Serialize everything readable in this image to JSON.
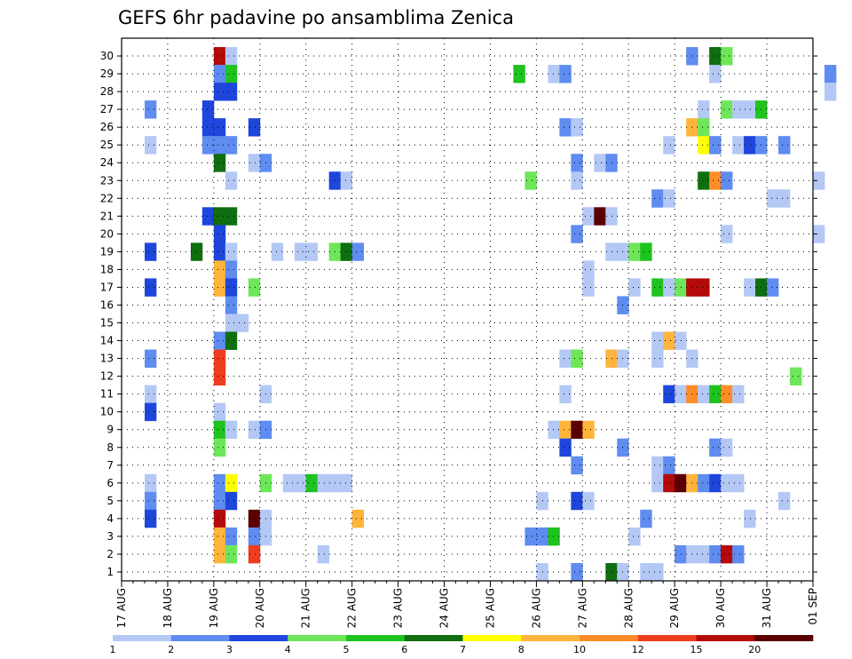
{
  "chart_data": {
    "type": "heatmap",
    "title": "GEFS 6hr padavine po ansamblima Zenica",
    "xlabel": "",
    "ylabel": "",
    "x_ticks": [
      "17 AUG",
      "18 AUG",
      "19 AUG",
      "20 AUG",
      "21 AUG",
      "22 AUG",
      "23 AUG",
      "24 AUG",
      "25 AUG",
      "26 AUG",
      "27 AUG",
      "28 AUG",
      "29 AUG",
      "30 AUG",
      "31 AUG",
      "01 SEP"
    ],
    "y_ticks": [
      1,
      2,
      3,
      4,
      5,
      6,
      7,
      8,
      9,
      10,
      11,
      12,
      13,
      14,
      15,
      16,
      17,
      18,
      19,
      20,
      21,
      22,
      23,
      24,
      25,
      26,
      27,
      28,
      29,
      30
    ],
    "x_unit": "6-hour steps since 17 AUG 00Z",
    "ylim": [
      0,
      30
    ],
    "grid": true,
    "colorbar": {
      "labels": [
        "1",
        "2",
        "3",
        "4",
        "5",
        "6",
        "7",
        "8",
        "10",
        "12",
        "15",
        "20"
      ],
      "colors": [
        "#b4c8f5",
        "#5f8cf0",
        "#1e46dc",
        "#6ee65a",
        "#1ec31e",
        "#0f6e0f",
        "#ffff00",
        "#ffb43c",
        "#ff8c28",
        "#f03c1e",
        "#b40a0a",
        "#5a0000"
      ]
    },
    "cells": [
      [
        8,
        30,
        10
      ],
      [
        9,
        30,
        0
      ],
      [
        49,
        30,
        1
      ],
      [
        51,
        30,
        5
      ],
      [
        52,
        30,
        3
      ],
      [
        8,
        29,
        1
      ],
      [
        9,
        29,
        4
      ],
      [
        34,
        29,
        4
      ],
      [
        37,
        29,
        0
      ],
      [
        38,
        29,
        1
      ],
      [
        51,
        29,
        0
      ],
      [
        61,
        29,
        1
      ],
      [
        8,
        28,
        2
      ],
      [
        9,
        28,
        2
      ],
      [
        61,
        28,
        0
      ],
      [
        2,
        27,
        1
      ],
      [
        7,
        27,
        2
      ],
      [
        50,
        27,
        0
      ],
      [
        52,
        27,
        3
      ],
      [
        53,
        27,
        0
      ],
      [
        54,
        27,
        0
      ],
      [
        55,
        27,
        4
      ],
      [
        7,
        26,
        2
      ],
      [
        8,
        26,
        2
      ],
      [
        11,
        26,
        2
      ],
      [
        38,
        26,
        1
      ],
      [
        39,
        26,
        0
      ],
      [
        49,
        26,
        7
      ],
      [
        50,
        26,
        3
      ],
      [
        2,
        25,
        0
      ],
      [
        7,
        25,
        1
      ],
      [
        8,
        25,
        1
      ],
      [
        9,
        25,
        1
      ],
      [
        47,
        25,
        0
      ],
      [
        50,
        25,
        6
      ],
      [
        51,
        25,
        1
      ],
      [
        53,
        25,
        0
      ],
      [
        54,
        25,
        2
      ],
      [
        55,
        25,
        1
      ],
      [
        57,
        25,
        1
      ],
      [
        8,
        24,
        5
      ],
      [
        11,
        24,
        0
      ],
      [
        12,
        24,
        1
      ],
      [
        39,
        24,
        1
      ],
      [
        41,
        24,
        0
      ],
      [
        42,
        24,
        1
      ],
      [
        9,
        23,
        0
      ],
      [
        18,
        23,
        2
      ],
      [
        19,
        23,
        0
      ],
      [
        35,
        23,
        3
      ],
      [
        39,
        23,
        0
      ],
      [
        50,
        23,
        5
      ],
      [
        51,
        23,
        8
      ],
      [
        52,
        23,
        1
      ],
      [
        60,
        23,
        0
      ],
      [
        46,
        22,
        1
      ],
      [
        47,
        22,
        0
      ],
      [
        56,
        22,
        0
      ],
      [
        57,
        22,
        0
      ],
      [
        7,
        21,
        2
      ],
      [
        8,
        21,
        5
      ],
      [
        9,
        21,
        5
      ],
      [
        40,
        21,
        0
      ],
      [
        41,
        21,
        11
      ],
      [
        42,
        21,
        0
      ],
      [
        8,
        20,
        2
      ],
      [
        39,
        20,
        1
      ],
      [
        52,
        20,
        0
      ],
      [
        60,
        20,
        0
      ],
      [
        2,
        19,
        2
      ],
      [
        6,
        19,
        5
      ],
      [
        8,
        19,
        2
      ],
      [
        9,
        19,
        0
      ],
      [
        13,
        19,
        0
      ],
      [
        15,
        19,
        0
      ],
      [
        16,
        19,
        0
      ],
      [
        18,
        19,
        3
      ],
      [
        19,
        19,
        5
      ],
      [
        20,
        19,
        1
      ],
      [
        42,
        19,
        0
      ],
      [
        43,
        19,
        0
      ],
      [
        44,
        19,
        3
      ],
      [
        45,
        19,
        4
      ],
      [
        8,
        18,
        7
      ],
      [
        9,
        18,
        1
      ],
      [
        40,
        18,
        0
      ],
      [
        2,
        17,
        2
      ],
      [
        8,
        17,
        7
      ],
      [
        9,
        17,
        2
      ],
      [
        11,
        17,
        3
      ],
      [
        40,
        17,
        0
      ],
      [
        44,
        17,
        0
      ],
      [
        46,
        17,
        4
      ],
      [
        47,
        17,
        0
      ],
      [
        48,
        17,
        3
      ],
      [
        49,
        17,
        10
      ],
      [
        50,
        17,
        10
      ],
      [
        54,
        17,
        0
      ],
      [
        55,
        17,
        5
      ],
      [
        56,
        17,
        1
      ],
      [
        9,
        16,
        1
      ],
      [
        43,
        16,
        1
      ],
      [
        9,
        15,
        0
      ],
      [
        10,
        15,
        0
      ],
      [
        8,
        14,
        1
      ],
      [
        9,
        14,
        5
      ],
      [
        46,
        14,
        0
      ],
      [
        47,
        14,
        7
      ],
      [
        48,
        14,
        0
      ],
      [
        2,
        13,
        1
      ],
      [
        8,
        13,
        9
      ],
      [
        38,
        13,
        0
      ],
      [
        39,
        13,
        3
      ],
      [
        42,
        13,
        7
      ],
      [
        43,
        13,
        0
      ],
      [
        46,
        13,
        0
      ],
      [
        49,
        13,
        0
      ],
      [
        8,
        12,
        9
      ],
      [
        58,
        12,
        3
      ],
      [
        2,
        11,
        0
      ],
      [
        12,
        11,
        0
      ],
      [
        38,
        11,
        0
      ],
      [
        47,
        11,
        2
      ],
      [
        48,
        11,
        0
      ],
      [
        49,
        11,
        8
      ],
      [
        50,
        11,
        0
      ],
      [
        51,
        11,
        4
      ],
      [
        52,
        11,
        8
      ],
      [
        53,
        11,
        0
      ],
      [
        2,
        10,
        2
      ],
      [
        8,
        10,
        0
      ],
      [
        8,
        9,
        4
      ],
      [
        9,
        9,
        0
      ],
      [
        11,
        9,
        0
      ],
      [
        12,
        9,
        1
      ],
      [
        37,
        9,
        0
      ],
      [
        38,
        9,
        7
      ],
      [
        39,
        9,
        11
      ],
      [
        40,
        9,
        7
      ],
      [
        8,
        8,
        3
      ],
      [
        38,
        8,
        2
      ],
      [
        43,
        8,
        1
      ],
      [
        51,
        8,
        1
      ],
      [
        52,
        8,
        0
      ],
      [
        39,
        7,
        1
      ],
      [
        46,
        7,
        0
      ],
      [
        47,
        7,
        1
      ],
      [
        2,
        6,
        0
      ],
      [
        8,
        6,
        1
      ],
      [
        9,
        6,
        6
      ],
      [
        12,
        6,
        3
      ],
      [
        14,
        6,
        0
      ],
      [
        15,
        6,
        0
      ],
      [
        16,
        6,
        4
      ],
      [
        17,
        6,
        0
      ],
      [
        18,
        6,
        0
      ],
      [
        19,
        6,
        0
      ],
      [
        46,
        6,
        0
      ],
      [
        47,
        6,
        10
      ],
      [
        48,
        6,
        11
      ],
      [
        49,
        6,
        7
      ],
      [
        50,
        6,
        1
      ],
      [
        51,
        6,
        2
      ],
      [
        52,
        6,
        0
      ],
      [
        53,
        6,
        0
      ],
      [
        2,
        5,
        1
      ],
      [
        8,
        5,
        1
      ],
      [
        9,
        5,
        2
      ],
      [
        36,
        5,
        0
      ],
      [
        39,
        5,
        2
      ],
      [
        40,
        5,
        0
      ],
      [
        57,
        5,
        0
      ],
      [
        2,
        4,
        2
      ],
      [
        8,
        4,
        10
      ],
      [
        11,
        4,
        11
      ],
      [
        12,
        4,
        0
      ],
      [
        20,
        4,
        7
      ],
      [
        45,
        4,
        1
      ],
      [
        54,
        4,
        0
      ],
      [
        8,
        3,
        7
      ],
      [
        9,
        3,
        1
      ],
      [
        11,
        3,
        1
      ],
      [
        12,
        3,
        0
      ],
      [
        35,
        3,
        1
      ],
      [
        36,
        3,
        1
      ],
      [
        37,
        3,
        4
      ],
      [
        44,
        3,
        0
      ],
      [
        8,
        2,
        7
      ],
      [
        9,
        2,
        3
      ],
      [
        11,
        2,
        9
      ],
      [
        17,
        2,
        0
      ],
      [
        48,
        2,
        1
      ],
      [
        49,
        2,
        0
      ],
      [
        50,
        2,
        0
      ],
      [
        51,
        2,
        1
      ],
      [
        52,
        2,
        10
      ],
      [
        53,
        2,
        1
      ],
      [
        36,
        1,
        0
      ],
      [
        39,
        1,
        1
      ],
      [
        42,
        1,
        5
      ],
      [
        43,
        1,
        0
      ],
      [
        45,
        1,
        0
      ],
      [
        46,
        1,
        0
      ]
    ]
  }
}
